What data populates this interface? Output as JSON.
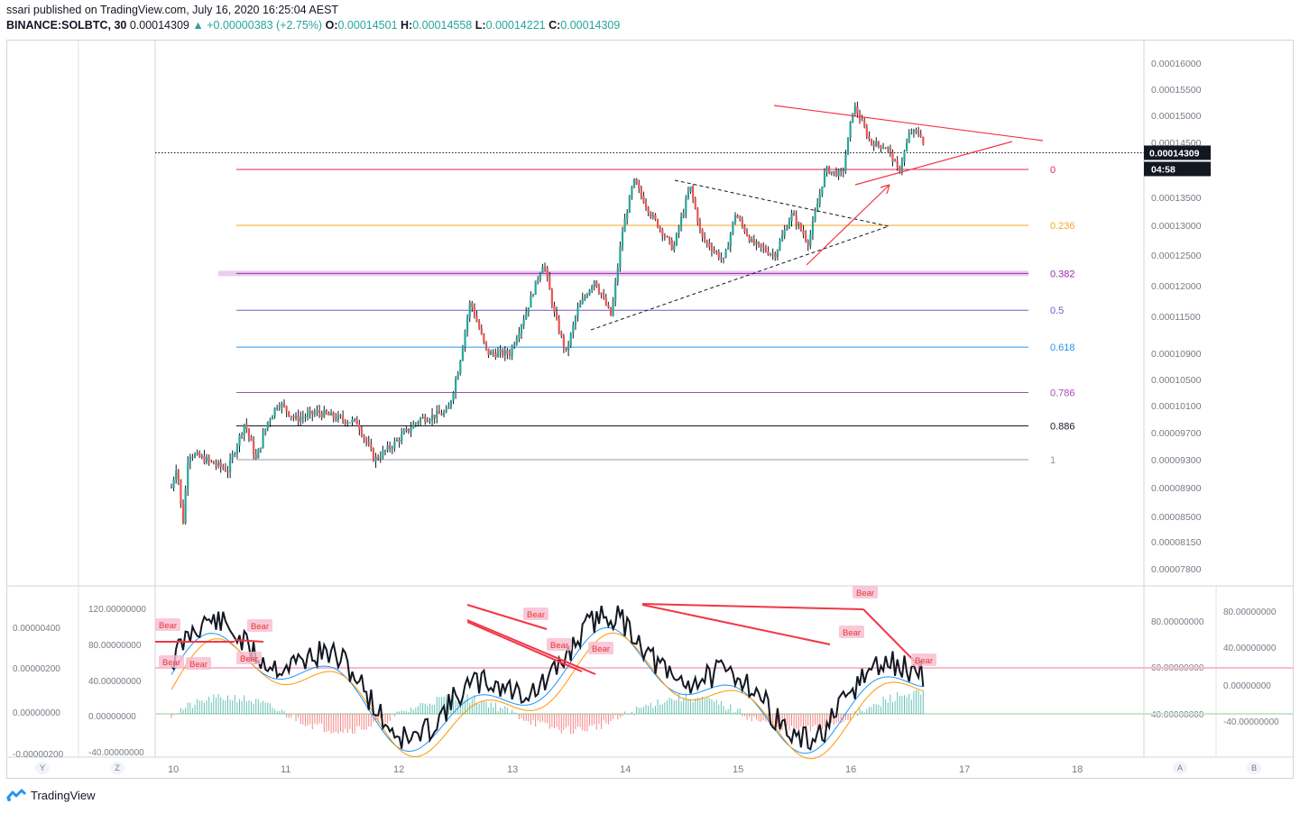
{
  "header": {
    "published": "ssari published on TradingView.com, July 16, 2020 16:25:04 AEST",
    "symbol": "BINANCE:SOLBTC, 30",
    "last": "0.00014309",
    "change": "+0.00000383 (+2.75%)",
    "o_label": "O:",
    "o_value": "0.00014501",
    "h_label": "H:",
    "h_value": "0.00014558",
    "l_label": "L:",
    "l_value": "0.00014221",
    "c_label": "C:",
    "c_value": "0.00014309"
  },
  "price_axis": {
    "ticks": [
      "0.00016000",
      "0.00015500",
      "0.00015000",
      "0.00014500",
      "0.00014000",
      "0.00013500",
      "0.00013000",
      "0.00012500",
      "0.00012000",
      "0.00011500",
      "0.00010900",
      "0.00010500",
      "0.00010100",
      "0.00009700",
      "0.00009300",
      "0.00008900",
      "0.00008500",
      "0.00008150",
      "0.00007800"
    ],
    "last_price_label": "0.00014309",
    "countdown_label": "04:58"
  },
  "fib_levels": [
    {
      "label": "0",
      "color": "#e0245e"
    },
    {
      "label": "0.236",
      "color": "#f5a623"
    },
    {
      "label": "0.382",
      "color": "#9c27b0"
    },
    {
      "label": "0.5",
      "color": "#7e57c2"
    },
    {
      "label": "0.618",
      "color": "#2196f3"
    },
    {
      "label": "0.786",
      "color": "#ab47bc"
    },
    {
      "label": "0.886",
      "color": "#131722"
    },
    {
      "label": "1",
      "color": "#9598a1"
    }
  ],
  "x_axis": {
    "ticks": [
      "10",
      "11",
      "12",
      "13",
      "14",
      "15",
      "16",
      "17",
      "18"
    ]
  },
  "indicator": {
    "left_axis": [
      "0.00000400",
      "0.00000200",
      "0.00000000",
      "-0.00000200"
    ],
    "left_axis2": [
      "120.00000000",
      "80.00000000",
      "40.00000000",
      "0.00000000",
      "-40.00000000"
    ],
    "right_axis": [
      "80.00000000",
      "60.00000000",
      "40.00000000"
    ],
    "right_axis2": [
      "80.00000000",
      "40.00000000",
      "0.00000000",
      "-40.00000000"
    ],
    "bear_labels": [
      "Bear",
      "Bear",
      "Bear",
      "Bear",
      "Bear",
      "Bear",
      "Bear",
      "Bear",
      "Bear",
      "Bear",
      "Bear"
    ]
  },
  "axis_buttons": {
    "y": "Y",
    "z": "Z",
    "a": "A",
    "b": "B"
  },
  "footer": {
    "brand": "TradingView"
  },
  "colors": {
    "up": "#26a69a",
    "down": "#ef5350",
    "accent": "#2962ff"
  },
  "chart_data": {
    "type": "candlestick",
    "x": [
      "10",
      "11",
      "12",
      "13",
      "14",
      "15",
      "16",
      "17",
      "18"
    ],
    "ylim": [
      7.6e-05,
      0.000163
    ],
    "last_price": 0.00014309,
    "fib_values": [
      0.00014,
      0.00013,
      0.000122,
      0.000116,
      0.00011,
      0.000103,
      9.8e-05,
      9.3e-05
    ]
  }
}
